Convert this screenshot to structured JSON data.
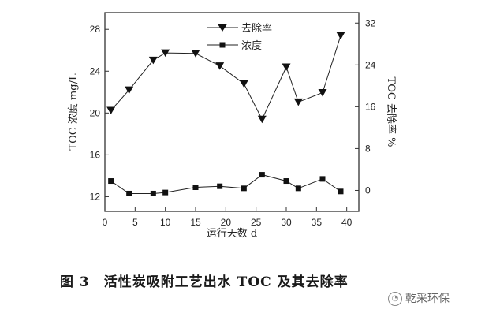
{
  "chart_data": {
    "type": "line",
    "xlabel": "运行天数 d",
    "ylabel_left": "TOC 浓度 mg/L",
    "ylabel_right": "TOC 去除率 %",
    "xlim": [
      0,
      42
    ],
    "ylim_left": [
      10.6,
      29.6
    ],
    "ylim_right": [
      -4,
      34
    ],
    "x_ticks": [
      0,
      5,
      10,
      15,
      20,
      25,
      30,
      35,
      40
    ],
    "y_ticks_left": [
      12,
      16,
      20,
      24,
      28
    ],
    "y_ticks_right": [
      0,
      8,
      16,
      24,
      32
    ],
    "legend_position": "top-center",
    "series": [
      {
        "name": "去除率",
        "axis": "right",
        "marker": "triangle-down",
        "x": [
          1,
          4,
          8,
          10,
          15,
          19,
          23,
          26,
          30,
          32,
          36,
          39
        ],
        "y": [
          15.3,
          19.2,
          24.9,
          26.3,
          26.2,
          23.8,
          20.4,
          13.6,
          23.6,
          16.9,
          18.7,
          29.6
        ]
      },
      {
        "name": "浓度",
        "axis": "left",
        "marker": "square",
        "x": [
          1,
          4,
          8,
          10,
          15,
          19,
          23,
          26,
          30,
          32,
          36,
          39
        ],
        "y": [
          13.5,
          12.3,
          12.3,
          12.4,
          12.9,
          13.0,
          12.8,
          14.1,
          13.5,
          12.8,
          13.7,
          12.5
        ]
      }
    ]
  },
  "caption": {
    "label": "图 3",
    "text": "活性炭吸附工艺出水 TOC 及其去除率"
  },
  "watermark": {
    "text": "乾采环保"
  }
}
